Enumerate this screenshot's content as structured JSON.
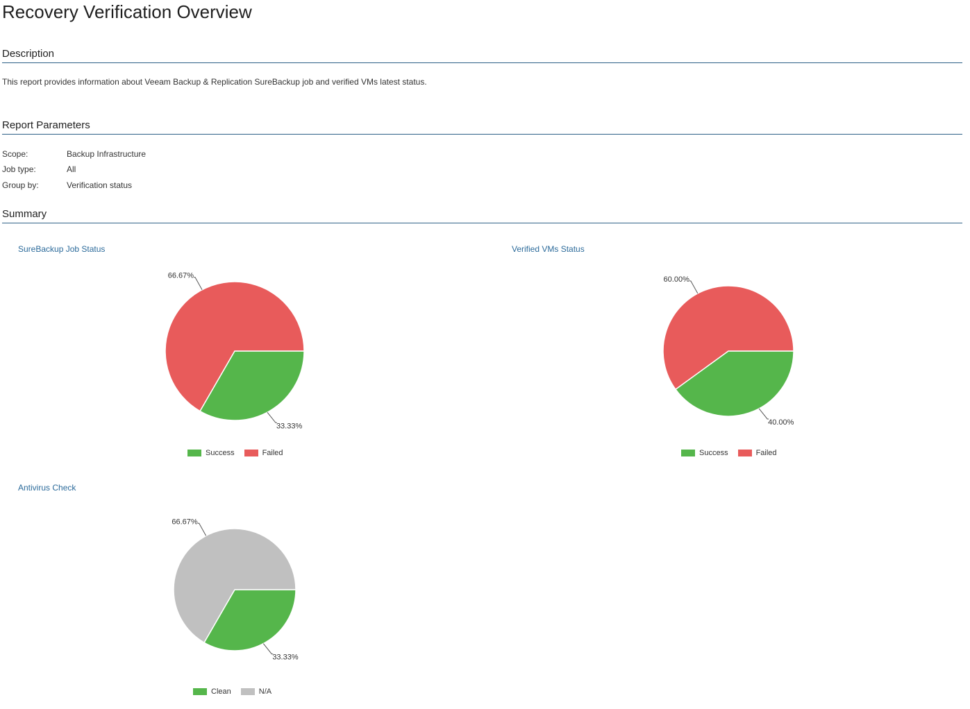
{
  "page": {
    "title": "Recovery Verification Overview"
  },
  "description": {
    "heading": "Description",
    "text": "This report provides information about Veeam Backup & Replication SureBackup job and verified VMs latest status."
  },
  "parameters": {
    "heading": "Report Parameters",
    "rows": [
      {
        "label": "Scope:",
        "value": "Backup Infrastructure"
      },
      {
        "label": "Job type:",
        "value": "All"
      },
      {
        "label": "Group by:",
        "value": "Verification status"
      }
    ]
  },
  "summary": {
    "heading": "Summary"
  },
  "chart_data": [
    {
      "type": "pie",
      "title": "SureBackup Job Status",
      "slices": [
        {
          "name": "Success",
          "value": 33.33,
          "label": "33.33%",
          "color": "#55b64b"
        },
        {
          "name": "Failed",
          "value": 66.67,
          "label": "66.67%",
          "color": "#e85b5b"
        }
      ],
      "legend": [
        "Success",
        "Failed"
      ],
      "legend_position": "bottom"
    },
    {
      "type": "pie",
      "title": "Verified VMs Status",
      "slices": [
        {
          "name": "Success",
          "value": 40.0,
          "label": "40.00%",
          "color": "#55b64b"
        },
        {
          "name": "Failed",
          "value": 60.0,
          "label": "60.00%",
          "color": "#e85b5b"
        }
      ],
      "legend": [
        "Success",
        "Failed"
      ],
      "legend_position": "bottom"
    },
    {
      "type": "pie",
      "title": "Antivirus Check",
      "slices": [
        {
          "name": "Clean",
          "value": 33.33,
          "label": "33.33%",
          "color": "#55b64b"
        },
        {
          "name": "N/A",
          "value": 66.67,
          "label": "66.67%",
          "color": "#c0c0c0"
        }
      ],
      "legend": [
        "Clean",
        "N/A"
      ],
      "legend_position": "bottom"
    }
  ]
}
